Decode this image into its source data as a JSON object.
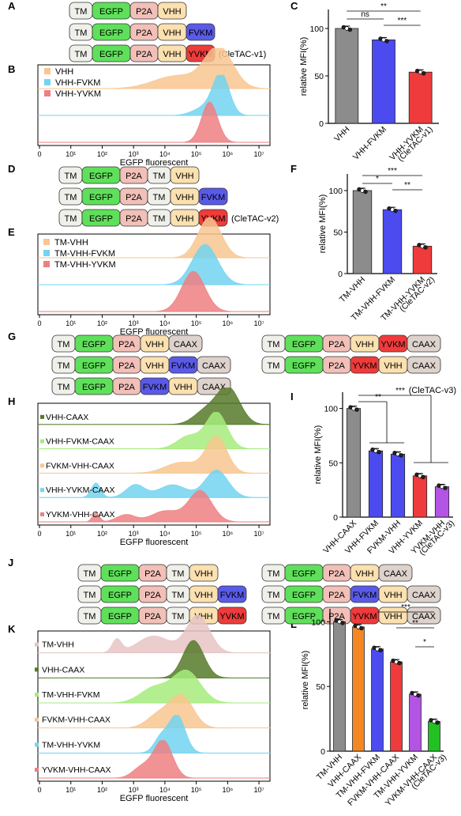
{
  "colors": {
    "TM": "#f0f0ea",
    "EGFP": "#5fe05a",
    "P2A": "#f2c0b8",
    "VHH": "#fbe0b0",
    "FVKM": "#5a5ae8",
    "YVKM": "#ee3b3b",
    "CAAX": "#ddd2cc",
    "hist_orange": "#f8c690",
    "hist_cyan": "#72d4f0",
    "hist_red": "#ee7f82",
    "hist_dkgreen": "#567a2a",
    "hist_ltgreen": "#a6ec7c",
    "hist_rose": "#e7c4c4",
    "bar_gray": "#8c8c8c",
    "bar_blue": "#4b4bf0",
    "bar_red": "#ef3b3b",
    "bar_purple": "#b354e4",
    "bar_orange": "#f58722",
    "bar_green": "#22c122"
  },
  "panel_letters": {
    "A": "A",
    "B": "B",
    "C": "C",
    "D": "D",
    "E": "E",
    "F": "F",
    "G": "G",
    "H": "H",
    "I": "I",
    "J": "J",
    "K": "K",
    "L": "L"
  },
  "constructs": {
    "A": [
      [
        "TM",
        "EGFP",
        "P2A",
        "VHH"
      ],
      [
        "TM",
        "EGFP",
        "P2A",
        "VHH",
        "FVKM"
      ],
      [
        "TM",
        "EGFP",
        "P2A",
        "VHH",
        "YVKM"
      ]
    ],
    "D": [
      [
        "TM",
        "EGFP",
        "P2A",
        "TM",
        "VHH"
      ],
      [
        "TM",
        "EGFP",
        "P2A",
        "TM",
        "VHH",
        "FVKM"
      ],
      [
        "TM",
        "EGFP",
        "P2A",
        "TM",
        "VHH",
        "YVKM"
      ]
    ],
    "G_left": [
      [
        "TM",
        "EGFP",
        "P2A",
        "VHH",
        "CAAX"
      ],
      [
        "TM",
        "EGFP",
        "P2A",
        "VHH",
        "FVKM",
        "CAAX"
      ],
      [
        "TM",
        "EGFP",
        "P2A",
        "FVKM",
        "VHH",
        "CAAX"
      ]
    ],
    "G_right": [
      [
        "TM",
        "EGFP",
        "P2A",
        "VHH",
        "YVKM",
        "CAAX"
      ],
      [
        "TM",
        "EGFP",
        "P2A",
        "YVKM",
        "VHH",
        "CAAX"
      ]
    ],
    "J_left": [
      [
        "TM",
        "EGFP",
        "P2A",
        "TM",
        "VHH"
      ],
      [
        "TM",
        "EGFP",
        "P2A",
        "TM",
        "VHH",
        "FVKM"
      ],
      [
        "TM",
        "EGFP",
        "P2A",
        "TM",
        "VHH",
        "YVKM"
      ]
    ],
    "J_right": [
      [
        "TM",
        "EGFP",
        "P2A",
        "VHH",
        "CAAX"
      ],
      [
        "TM",
        "EGFP",
        "P2A",
        "FVKM",
        "VHH",
        "CAAX"
      ],
      [
        "TM",
        "EGFP",
        "P2A",
        "YVKM",
        "VHH",
        "CAAX"
      ]
    ]
  },
  "construct_notes": {
    "A": "(CleTAC-v1)",
    "D": "(CleTAC-v2)",
    "G": "(CleTAC-v3)"
  },
  "flow_axis": {
    "xlabel": "EGFP fluorescent",
    "ticks": [
      "0",
      "10¹",
      "10²",
      "10³",
      "10⁴",
      "10⁵",
      "10⁶",
      "10⁷"
    ]
  },
  "histograms": {
    "B": {
      "legend": [
        "VHH",
        "VHH-FVKM",
        "VHH-YVKM"
      ],
      "colors": [
        "#f8c690",
        "#72d4f0",
        "#ee7f82"
      ]
    },
    "E": {
      "legend": [
        "TM-VHH",
        "TM-VHH-FVKM",
        "TM-VHH-YVKM"
      ],
      "colors": [
        "#f8c690",
        "#72d4f0",
        "#ee7f82"
      ]
    },
    "H": {
      "legend": [
        "VHH-CAAX",
        "VHH-FVKM-CAAX",
        "FVKM-VHH-CAAX",
        "VHH-YVKM-CAAX",
        "YVKM-VHH-CAAX"
      ],
      "colors": [
        "#567a2a",
        "#a6ec7c",
        "#f8c690",
        "#72d4f0",
        "#ee7f82"
      ]
    },
    "K": {
      "legend": [
        "TM-VHH",
        "VHH-CAAX",
        "TM-VHH-FVKM",
        "FVKM-VHH-CAAX",
        "TM-VHH-YVKM",
        "YVKM-VHH-CAAX"
      ],
      "colors": [
        "#e7c4c4",
        "#567a2a",
        "#a6ec7c",
        "#f8c690",
        "#72d4f0",
        "#ee7f82"
      ]
    }
  },
  "chart_data": [
    {
      "panel": "C",
      "type": "bar",
      "ylabel": "relative MFI(%)",
      "ylim": [
        0,
        120
      ],
      "yticks": [
        "0",
        "50",
        "100"
      ],
      "categories": [
        "VHH",
        "VHH-FVKM",
        "VHH-YVKM\n(CleTAC-v1)"
      ],
      "values": [
        100,
        88,
        54
      ],
      "colors": [
        "#8c8c8c",
        "#4b4bf0",
        "#ef3b3b"
      ],
      "significance": [
        {
          "pair": [
            0,
            1
          ],
          "label": "ns"
        },
        {
          "pair": [
            0,
            2
          ],
          "label": "**"
        },
        {
          "pair": [
            1,
            2
          ],
          "label": "***"
        }
      ]
    },
    {
      "panel": "F",
      "type": "bar",
      "ylabel": "relative MFI(%)",
      "ylim": [
        0,
        120
      ],
      "yticks": [
        "0",
        "50",
        "100"
      ],
      "categories": [
        "TM-VHH",
        "TM-VHH-FVKM",
        "TM-VHH-YVKM\n(CleTAC-v2)"
      ],
      "values": [
        100,
        77,
        33
      ],
      "colors": [
        "#8c8c8c",
        "#4b4bf0",
        "#ef3b3b"
      ],
      "significance": [
        {
          "pair": [
            0,
            1
          ],
          "label": "*"
        },
        {
          "pair": [
            0,
            2
          ],
          "label": "***"
        },
        {
          "pair": [
            1,
            2
          ],
          "label": "**"
        }
      ]
    },
    {
      "panel": "I",
      "type": "bar",
      "ylabel": "relative MFI(%)",
      "ylim": [
        0,
        115
      ],
      "yticks": [
        "0",
        "50",
        "100"
      ],
      "categories": [
        "VHH-CAAX",
        "VHH-FVKM",
        "FVKM-VHH",
        "VHH-YVKM",
        "YVKM-VHH\n(CleTAC-v3)"
      ],
      "values": [
        100,
        61,
        58,
        38,
        28
      ],
      "colors": [
        "#8c8c8c",
        "#4b4bf0",
        "#4b4bf0",
        "#ef3b3b",
        "#b354e4"
      ],
      "significance": [
        {
          "group": [
            1,
            2
          ],
          "label": "**"
        },
        {
          "group": [
            3,
            4
          ],
          "label": "***"
        }
      ]
    },
    {
      "panel": "L",
      "type": "bar",
      "ylabel": "relative MFI(%)",
      "ylim": [
        0,
        110
      ],
      "yticks": [
        "0",
        "50",
        "100"
      ],
      "categories": [
        "TM-VHH",
        "VHH-CAAX",
        "TM-VHH-FVKM",
        "FVKM-VHH-CAAX",
        "TM-VHH-YVKM",
        "YVKM-VHH-CAAX\n(CleTAC-v3)"
      ],
      "values": [
        100,
        96,
        79,
        69,
        44,
        23
      ],
      "colors": [
        "#8c8c8c",
        "#f58722",
        "#4b4bf0",
        "#ef3b3b",
        "#b354e4",
        "#22c122"
      ],
      "significance": [
        {
          "pair": [
            2,
            5
          ],
          "label": "***"
        },
        {
          "pair": [
            3,
            5
          ],
          "label": "**"
        },
        {
          "pair": [
            4,
            5
          ],
          "label": "*"
        }
      ]
    }
  ]
}
